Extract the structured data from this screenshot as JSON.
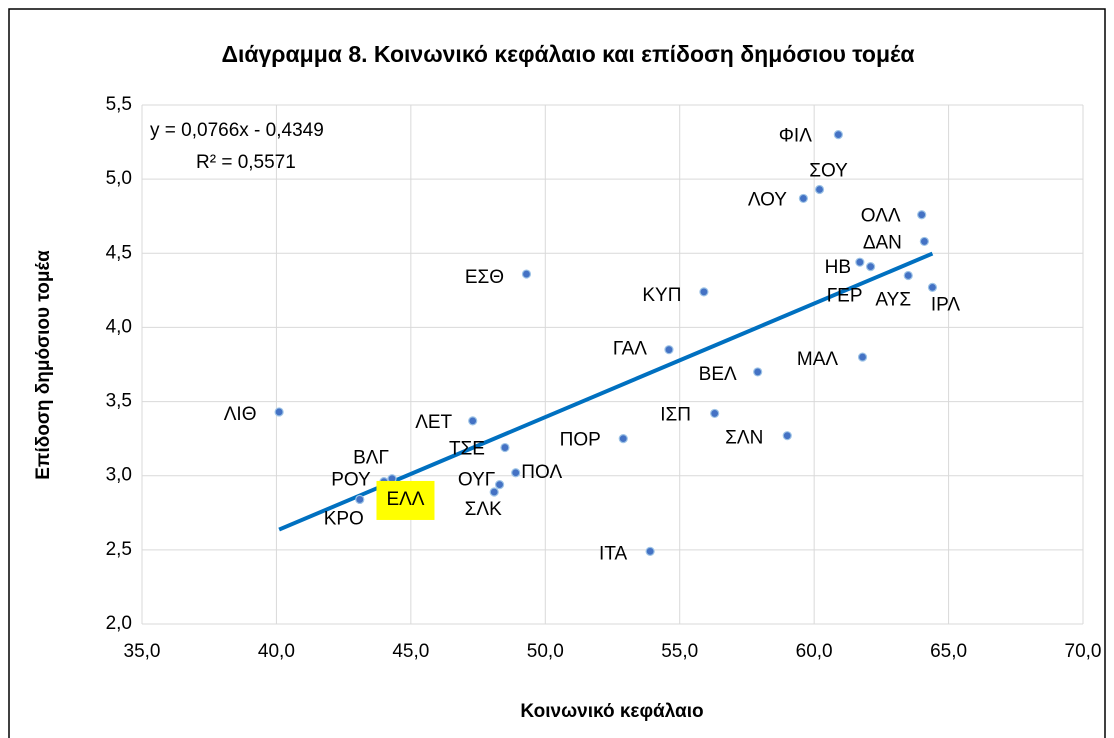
{
  "chart_data": {
    "type": "scatter",
    "title": "Διάγραμμα 8. Κοινωνικό κεφάλαιο και επίδοση δημόσιου τομέα",
    "xlabel": "Κοινωνικό κεφάλαιο",
    "ylabel": "Επίδοση δημόσιου τομέα",
    "xlim": [
      35,
      70
    ],
    "xticks": [
      {
        "value": 35,
        "label": "35,0"
      },
      {
        "value": 40,
        "label": "40,0"
      },
      {
        "value": 45,
        "label": "45,0"
      },
      {
        "value": 50,
        "label": "50,0"
      },
      {
        "value": 55,
        "label": "55,0"
      },
      {
        "value": 60,
        "label": "60,0"
      },
      {
        "value": 65,
        "label": "65,0"
      },
      {
        "value": 70,
        "label": "70,0"
      }
    ],
    "ylim": [
      2,
      5.5
    ],
    "yticks": [
      {
        "value": 2,
        "label": "2,0"
      },
      {
        "value": 2.5,
        "label": "2,5"
      },
      {
        "value": 3,
        "label": "3,0"
      },
      {
        "value": 3.5,
        "label": "3,5"
      },
      {
        "value": 4,
        "label": "4,0"
      },
      {
        "value": 4.5,
        "label": "4,5"
      },
      {
        "value": 5,
        "label": "5,0"
      },
      {
        "value": 5.5,
        "label": "5,5"
      }
    ],
    "grid": true,
    "series": [
      {
        "color": "#4472c4",
        "labels": [
          "ΦΙΛ",
          "ΣΟΥ",
          "ΛΟΥ",
          "ΟΛΛ",
          "ΔΑΝ",
          "ΗΒ",
          "ΓΕΡ",
          "ΑΥΣ",
          "ΙΡΛ",
          "ΕΣΘ",
          "ΚΥΠ",
          "ΓΑΛ",
          "ΜΑΛ",
          "ΒΕΛ",
          "ΛΙΘ",
          "ΛΕΤ",
          "ΙΣΠ",
          "ΣΛΝ",
          "ΠΟΡ",
          "ΤΣΕ",
          "ΠΟΛ",
          "ΟΥΓ",
          "ΣΛΚ",
          "ΒΛΓ",
          "ΡΟΥ",
          "ΚΡΟ",
          "ΕΛΛ",
          "ΙΤΑ"
        ],
        "x": [
          60.9,
          60.2,
          59.6,
          64.0,
          64.1,
          61.7,
          62.1,
          63.5,
          64.4,
          49.3,
          55.9,
          54.6,
          61.8,
          57.9,
          40.1,
          47.3,
          56.3,
          59.0,
          52.9,
          48.5,
          48.9,
          48.3,
          48.1,
          44.3,
          44.0,
          43.1,
          44.8,
          53.9
        ],
        "values": [
          5.3,
          4.93,
          4.87,
          4.76,
          4.58,
          4.44,
          4.41,
          4.35,
          4.27,
          4.36,
          4.24,
          3.85,
          3.8,
          3.7,
          3.43,
          3.37,
          3.42,
          3.27,
          3.25,
          3.19,
          3.02,
          2.94,
          2.89,
          2.98,
          2.96,
          2.84,
          2.85,
          2.49
        ]
      }
    ],
    "trendline": {
      "equation": "y = 0,0766x - 0,4349",
      "r2": "R² = 0,5571",
      "slope": 0.0766,
      "intercept": -0.4349,
      "color": "#0070c0"
    }
  }
}
